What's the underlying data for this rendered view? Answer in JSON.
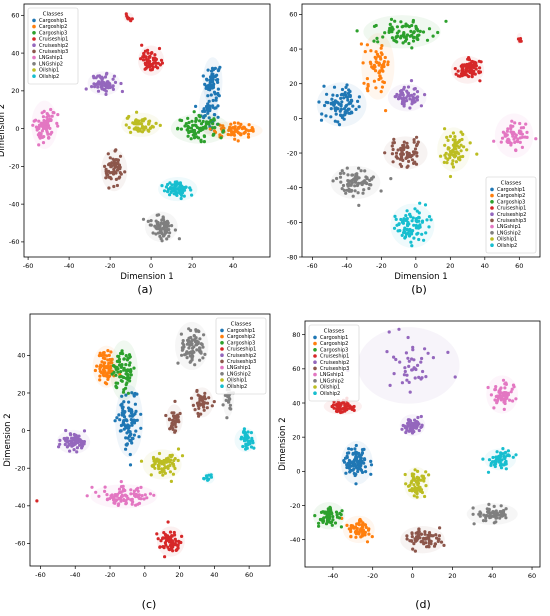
{
  "colors": {
    "Cargoship1": "#1f77b4",
    "Cargoship2": "#ff7f0e",
    "Cargoship3": "#2ca02c",
    "Cruiseship1": "#d62728",
    "Cruiseship2": "#9467bd",
    "Cruiseship3": "#8c564b",
    "LNGship1": "#e377c2",
    "LNGship2": "#7f7f7f",
    "Oilship1": "#bcbd22",
    "Oilship2": "#17becf"
  },
  "chart_data": [
    {
      "type": "scatter",
      "caption": "(a)",
      "xlabel": "Dimension 1",
      "ylabel": "Dimension 2",
      "xlim": [
        -62,
        58
      ],
      "ylim": [
        -68,
        66
      ],
      "xticks": [
        -60,
        -40,
        -20,
        0,
        20,
        40
      ],
      "yticks": [
        -60,
        -40,
        -20,
        0,
        20,
        40,
        60
      ],
      "legend": {
        "title": "Classes",
        "placement": "upper-left"
      },
      "series": [
        {
          "name": "Cargoship1",
          "clusters": [
            {
              "cx": 30,
              "cy": 25,
              "rx": 3,
              "ry": 8,
              "n": 60
            },
            {
              "cx": 28,
              "cy": 10,
              "rx": 3,
              "ry": 8,
              "n": 40
            }
          ]
        },
        {
          "name": "Cargoship2",
          "clusters": [
            {
              "cx": 40,
              "cy": -1,
              "rx": 9,
              "ry": 3,
              "n": 70
            }
          ]
        },
        {
          "name": "Cargoship3",
          "clusters": [
            {
              "cx": 24,
              "cy": 0,
              "rx": 9,
              "ry": 5,
              "n": 80
            }
          ]
        },
        {
          "name": "Cruiseship1",
          "clusters": [
            {
              "cx": 0,
              "cy": 36,
              "rx": 4,
              "ry": 5,
              "n": 60
            },
            {
              "cx": -11,
              "cy": 59,
              "rx": 1.5,
              "ry": 1.5,
              "n": 10
            }
          ]
        },
        {
          "name": "Cruiseship2",
          "clusters": [
            {
              "cx": -23,
              "cy": 24,
              "rx": 5,
              "ry": 4,
              "n": 60
            }
          ]
        },
        {
          "name": "Cruiseship3",
          "clusters": [
            {
              "cx": -18,
              "cy": -22,
              "rx": 4,
              "ry": 7,
              "n": 60
            }
          ]
        },
        {
          "name": "LNGship1",
          "clusters": [
            {
              "cx": -52,
              "cy": 2,
              "rx": 4,
              "ry": 8,
              "n": 80
            }
          ]
        },
        {
          "name": "LNGship2",
          "clusters": [
            {
              "cx": 5,
              "cy": -52,
              "rx": 5,
              "ry": 5,
              "n": 70
            }
          ]
        },
        {
          "name": "Oilship1",
          "clusters": [
            {
              "cx": -5,
              "cy": 2,
              "rx": 6,
              "ry": 4,
              "n": 60
            }
          ]
        },
        {
          "name": "Oilship2",
          "clusters": [
            {
              "cx": 13,
              "cy": -32,
              "rx": 6,
              "ry": 4,
              "n": 60
            }
          ]
        }
      ]
    },
    {
      "type": "scatter",
      "caption": "(b)",
      "xlabel": "Dimension 1",
      "ylabel": "",
      "xlim": [
        -66,
        72
      ],
      "ylim": [
        -80,
        66
      ],
      "xticks": [
        -60,
        -40,
        -20,
        0,
        20,
        40,
        60
      ],
      "yticks": [
        -80,
        -60,
        -40,
        -20,
        0,
        20,
        40,
        60
      ],
      "legend": {
        "title": "Classes",
        "placement": "lower-right"
      },
      "series": [
        {
          "name": "Cargoship1",
          "clusters": [
            {
              "cx": -43,
              "cy": 8,
              "rx": 9,
              "ry": 8,
              "n": 90
            }
          ]
        },
        {
          "name": "Cargoship2",
          "clusters": [
            {
              "cx": -22,
              "cy": 30,
              "rx": 6,
              "ry": 12,
              "n": 60
            }
          ]
        },
        {
          "name": "Cargoship3",
          "clusters": [
            {
              "cx": -8,
              "cy": 50,
              "rx": 14,
              "ry": 6,
              "n": 80
            }
          ]
        },
        {
          "name": "Cruiseship1",
          "clusters": [
            {
              "cx": 30,
              "cy": 28,
              "rx": 6,
              "ry": 5,
              "n": 80
            },
            {
              "cx": 60,
              "cy": 46,
              "rx": 1,
              "ry": 2,
              "n": 4
            }
          ]
        },
        {
          "name": "Cruiseship2",
          "clusters": [
            {
              "cx": -5,
              "cy": 12,
              "rx": 7,
              "ry": 5,
              "n": 60
            }
          ]
        },
        {
          "name": "Cruiseship3",
          "clusters": [
            {
              "cx": -6,
              "cy": -20,
              "rx": 8,
              "ry": 6,
              "n": 70
            }
          ]
        },
        {
          "name": "LNGship1",
          "clusters": [
            {
              "cx": 57,
              "cy": -10,
              "rx": 7,
              "ry": 8,
              "n": 60
            }
          ]
        },
        {
          "name": "LNGship2",
          "clusters": [
            {
              "cx": -35,
              "cy": -37,
              "rx": 9,
              "ry": 6,
              "n": 80
            }
          ]
        },
        {
          "name": "Oilship1",
          "clusters": [
            {
              "cx": 22,
              "cy": -18,
              "rx": 6,
              "ry": 8,
              "n": 70
            }
          ]
        },
        {
          "name": "Oilship2",
          "clusters": [
            {
              "cx": -2,
              "cy": -62,
              "rx": 8,
              "ry": 8,
              "n": 80
            }
          ]
        }
      ]
    },
    {
      "type": "scatter",
      "caption": "(c)",
      "xlabel": "",
      "ylabel": "Dimension 2",
      "xlim": [
        -66,
        72
      ],
      "ylim": [
        -72,
        62
      ],
      "xticks": [
        -60,
        -40,
        -20,
        0,
        20,
        40,
        60
      ],
      "yticks": [
        -60,
        -40,
        -20,
        0,
        20,
        40
      ],
      "legend": {
        "title": "Classes",
        "placement": "upper-right"
      },
      "series": [
        {
          "name": "Cargoship1",
          "clusters": [
            {
              "cx": -9,
              "cy": 5,
              "rx": 5,
              "ry": 12,
              "n": 100
            }
          ]
        },
        {
          "name": "Cargoship2",
          "clusters": [
            {
              "cx": -22,
              "cy": 34,
              "rx": 5,
              "ry": 7,
              "n": 70
            }
          ]
        },
        {
          "name": "Cargoship3",
          "clusters": [
            {
              "cx": -12,
              "cy": 32,
              "rx": 5,
              "ry": 10,
              "n": 70
            }
          ]
        },
        {
          "name": "Cruiseship1",
          "clusters": [
            {
              "cx": 15,
              "cy": -59,
              "rx": 5,
              "ry": 5,
              "n": 70
            },
            {
              "cx": -62,
              "cy": -38,
              "rx": 0.5,
              "ry": 0.5,
              "n": 1
            }
          ]
        },
        {
          "name": "Cruiseship2",
          "clusters": [
            {
              "cx": -41,
              "cy": -6,
              "rx": 6,
              "ry": 4,
              "n": 60
            }
          ]
        },
        {
          "name": "Cruiseship3",
          "clusters": [
            {
              "cx": 17,
              "cy": 6,
              "rx": 3,
              "ry": 5,
              "n": 40
            },
            {
              "cx": 33,
              "cy": 15,
              "rx": 4,
              "ry": 5,
              "n": 40
            }
          ]
        },
        {
          "name": "LNGship1",
          "clusters": [
            {
              "cx": -12,
              "cy": -35,
              "rx": 12,
              "ry": 4,
              "n": 80
            }
          ]
        },
        {
          "name": "LNGship2",
          "clusters": [
            {
              "cx": 27,
              "cy": 45,
              "rx": 6,
              "ry": 8,
              "n": 80
            },
            {
              "cx": 48,
              "cy": 17,
              "rx": 2,
              "ry": 6,
              "n": 25
            }
          ]
        },
        {
          "name": "Oilship1",
          "clusters": [
            {
              "cx": 10,
              "cy": -18,
              "rx": 7,
              "ry": 5,
              "n": 70
            }
          ]
        },
        {
          "name": "Oilship2",
          "clusters": [
            {
              "cx": 58,
              "cy": -5,
              "rx": 4,
              "ry": 4,
              "n": 40
            },
            {
              "cx": 37,
              "cy": -25,
              "rx": 2,
              "ry": 2,
              "n": 10
            }
          ]
        }
      ]
    },
    {
      "type": "scatter",
      "caption": "(d)",
      "xlabel": "",
      "ylabel": "Dimension 2",
      "xlim": [
        -54,
        64
      ],
      "ylim": [
        -56,
        88
      ],
      "xticks": [
        -40,
        -20,
        0,
        20,
        40,
        60
      ],
      "yticks": [
        -40,
        -20,
        0,
        20,
        40,
        60,
        80
      ],
      "legend": {
        "title": "Classes",
        "placement": "upper-left"
      },
      "series": [
        {
          "name": "Cargoship1",
          "clusters": [
            {
              "cx": -28,
              "cy": 5,
              "rx": 5,
              "ry": 8,
              "n": 90
            }
          ]
        },
        {
          "name": "Cargoship2",
          "clusters": [
            {
              "cx": -27,
              "cy": -34,
              "rx": 5,
              "ry": 5,
              "n": 60
            }
          ]
        },
        {
          "name": "Cargoship3",
          "clusters": [
            {
              "cx": -42,
              "cy": -26,
              "rx": 5,
              "ry": 5,
              "n": 60
            }
          ]
        },
        {
          "name": "Cruiseship1",
          "clusters": [
            {
              "cx": -35,
              "cy": 38,
              "rx": 6,
              "ry": 3,
              "n": 60
            }
          ]
        },
        {
          "name": "Cruiseship2",
          "clusters": [
            {
              "cx": 0,
              "cy": 27,
              "rx": 4,
              "ry": 4,
              "n": 60
            }
          ]
        },
        {
          "name": "Cruiseship3",
          "clusters": [
            {
              "cx": 5,
              "cy": -40,
              "rx": 7,
              "ry": 5,
              "n": 70
            }
          ]
        },
        {
          "name": "LNGship1",
          "clusters": [
            {
              "cx": 45,
              "cy": 45,
              "rx": 5,
              "ry": 7,
              "n": 60
            }
          ]
        },
        {
          "name": "LNGship2",
          "clusters": [
            {
              "cx": 40,
              "cy": -25,
              "rx": 8,
              "ry": 4,
              "n": 60
            }
          ]
        },
        {
          "name": "Oilship1",
          "clusters": [
            {
              "cx": 2,
              "cy": -7,
              "rx": 4,
              "ry": 6,
              "n": 60
            }
          ]
        },
        {
          "name": "Oilship2",
          "clusters": [
            {
              "cx": 44,
              "cy": 7,
              "rx": 5,
              "ry": 4,
              "n": 60
            }
          ]
        },
        {
          "name": "Cruiseship2",
          "note": "scattered points in upper-center region",
          "clusters": [
            {
              "cx": -2,
              "cy": 62,
              "rx": 16,
              "ry": 14,
              "n": 45
            }
          ]
        }
      ]
    }
  ]
}
